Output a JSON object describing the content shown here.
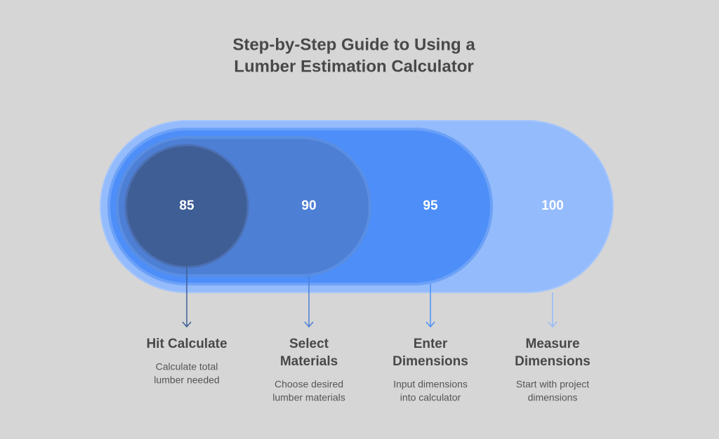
{
  "title": [
    "Step-by-Step Guide to Using a",
    "Lumber Estimation Calculator"
  ],
  "steps": [
    {
      "value": 85,
      "title": [
        "Hit Calculate"
      ],
      "description": [
        "Calculate total",
        "lumber needed"
      ]
    },
    {
      "value": 90,
      "title": [
        "Select",
        "Materials"
      ],
      "description": [
        "Choose desired",
        "lumber materials"
      ]
    },
    {
      "value": 95,
      "title": [
        "Enter",
        "Dimensions"
      ],
      "description": [
        "Input dimensions",
        "into calculator"
      ]
    },
    {
      "value": 100,
      "title": [
        "Measure",
        "Dimensions"
      ],
      "description": [
        "Start with project",
        "dimensions"
      ]
    }
  ]
}
